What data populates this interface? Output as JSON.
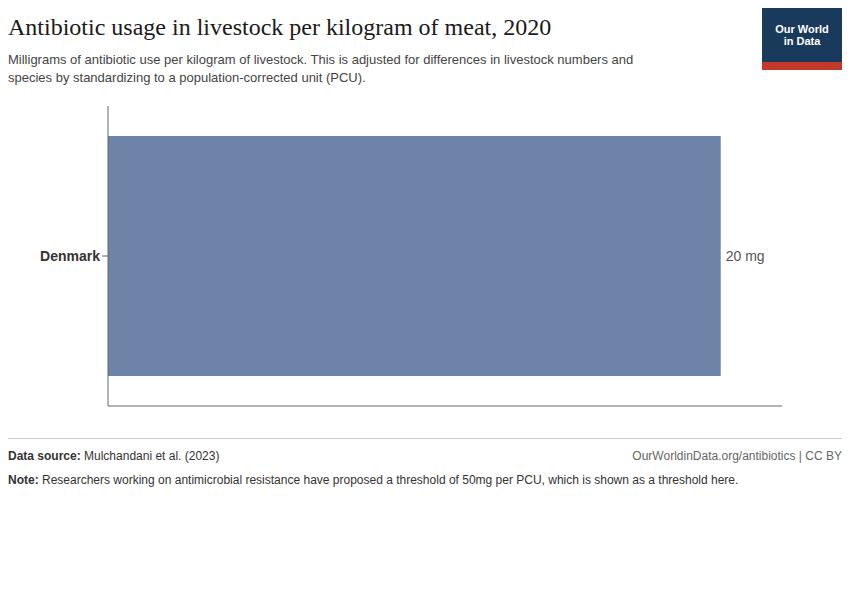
{
  "chart_data": {
    "type": "bar",
    "orientation": "horizontal",
    "title": "Antibiotic usage in livestock per kilogram of meat, 2020",
    "subtitle": "Milligrams of antibiotic use per kilogram of livestock. This is adjusted for differences in livestock numbers and\nspecies by standardizing to a population-corrected unit (PCU).",
    "categories": [
      "Denmark"
    ],
    "values": [
      20
    ],
    "value_labels": [
      "20 mg"
    ],
    "data_labels": true,
    "color": "#6d84a8",
    "xlim": [
      0,
      22
    ],
    "xticks": [],
    "tick_labels": "y",
    "grid": false,
    "annotations": [
      "Data source: Mulchandani et al. (2023)",
      "OurWorldinData.org/antibiotics | CC BY",
      "Note: Researchers working on antimicrobial resistance have proposed a threshold of 50mg per PCU, which is shown as a threshold here.",
      "Our World",
      "in Data"
    ]
  }
}
